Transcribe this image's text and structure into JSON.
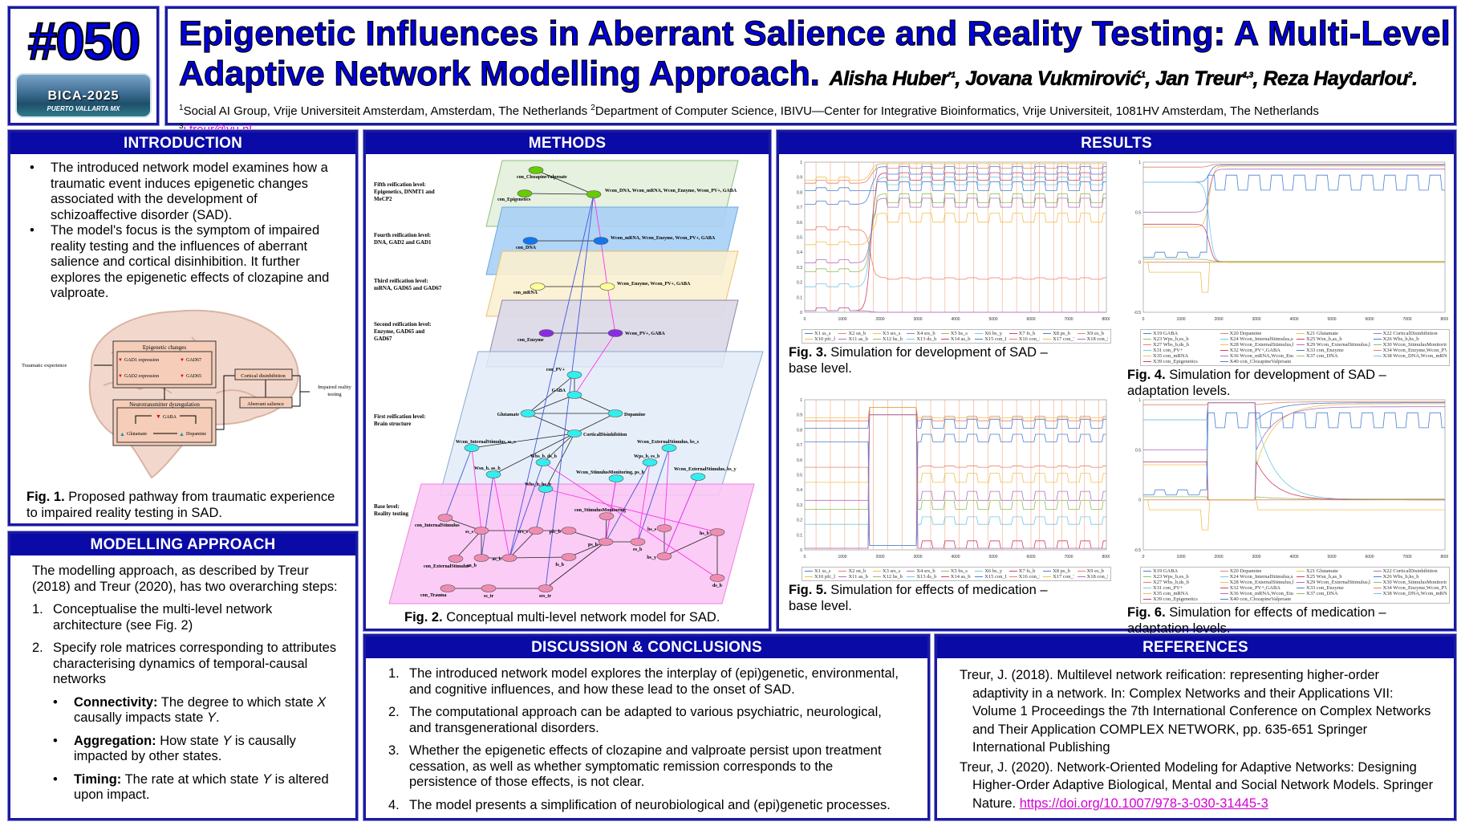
{
  "logo": {
    "number": "#050",
    "conference": "BICA",
    "year": "-2025",
    "location": "PUERTO VALLARTA MX"
  },
  "header": {
    "title_line1": "Epigenetic Influences in Aberrant Salience and Reality Testing: A Multi-Level",
    "title_line2": "Adaptive Network Modelling Approach.",
    "authors": [
      {
        "name": "Alisha Huber",
        "sup": "*1"
      },
      {
        "name": "Jovana Vukmirović",
        "sup": "1"
      },
      {
        "name": "Jan Treur",
        "sup": "1,3"
      },
      {
        "name": "Reza Haydarlou",
        "sup": "2"
      }
    ],
    "affiliation1_sup": "1",
    "affiliation1": "Social AI Group, Vrije Universiteit Amsterdam, Amsterdam, The Netherlands ",
    "affiliation2_sup": "2",
    "affiliation2": "Department of Computer Science, IBIVU—Center for Integrative Bioinformatics, Vrije Universiteit, 1081HV Amsterdam, The Netherlands",
    "email_sup": "3",
    "email": "j.treur@vu.nl"
  },
  "introduction": {
    "heading": "INTRODUCTION",
    "bullets": [
      "The introduced network model examines how a traumatic event induces epigenetic changes associated with the development of schizoaffective disorder (SAD).",
      "The model's focus is the symptom of impaired reality testing and the influences of aberrant salience and cortical disinhibition. It further explores the epigenetic effects of clozapine and valproate."
    ],
    "figure": {
      "traumatic": "Traumatic experience",
      "epi_title": "Epigenetic changes",
      "gad1": "GAD1 expression",
      "gad67": "GAD67",
      "gad2": "GAD2 expression",
      "gad65": "GAD65",
      "neuro_title": "Neurotransmitter dysregulation",
      "gaba": "GABA",
      "glutamate": "Glutamate",
      "dopamine": "Dopamine",
      "cortical": "Cortical disinhibition",
      "aberrant": "Aberrant salience",
      "impaired1": "Impaired reality",
      "impaired2": "testing"
    },
    "caption_label": "Fig. 1.",
    "caption": " Proposed pathway from traumatic experience to impaired reality testing in SAD."
  },
  "modelling": {
    "heading": "MODELLING APPROACH",
    "intro": "The modelling approach, as described by Treur (2018) and Treur (2020), has two overarching steps:",
    "steps": [
      {
        "n": "1.",
        "text": "Conceptualise the multi-level network architecture (see Fig. 2)"
      },
      {
        "n": "2.",
        "text": "Specify role matrices corresponding to attributes characterising dynamics of temporal-causal networks"
      }
    ],
    "attributes": [
      {
        "term": "Connectivity:",
        "pre": " The degree to which state ",
        "v1": "X",
        "mid": " causally impacts state ",
        "v2": "Y",
        "post": "."
      },
      {
        "term": "Aggregation:",
        "pre": " How state ",
        "v1": "Y",
        "mid": " is causally impacted by other states.",
        "v2": "",
        "post": ""
      },
      {
        "term": "Timing:",
        "pre": " The rate at which state ",
        "v1": "Y",
        "mid": " is altered upon impact.",
        "v2": "",
        "post": ""
      }
    ]
  },
  "methods": {
    "heading": "METHODS",
    "levels": [
      {
        "l1": "Fifth reification level:",
        "l2": "Epigenetics, DNMT1 and",
        "l3": "MeCP2"
      },
      {
        "l1": "Fourth reification level:",
        "l2": "DNA, GAD2 and GAD1",
        "l3": ""
      },
      {
        "l1": "Third reification level:",
        "l2": "mRNA, GAD65 and GAD67",
        "l3": ""
      },
      {
        "l1": "Second reification level:",
        "l2": "Enzyme, GAD65 and",
        "l3": "GAD67"
      },
      {
        "l1": "First reification level:",
        "l2": "Brain structure",
        "l3": ""
      },
      {
        "l1": "Base level:",
        "l2": "Reality testing",
        "l3": ""
      }
    ],
    "nodes": {
      "conCV": "con_ClozapineValproate",
      "conEpi": "con_Epigenetics",
      "w5": "Wcon_DNA, Wcon_mRNA, Wcon_Enzyme, Wcon_PV+, GABA",
      "conDNA": "con_DNA",
      "w4": "Wcon_mRNA, Wcon_Enzyme, Wcon_PV+, GABA",
      "conmRNA": "con_mRNA",
      "w3": "Wcon_Enzyme, Wcon_PV+, GABA",
      "conEnz": "con_Enzyme",
      "w2": "Wcon_PV+, GABA",
      "conPV": "con_PV+",
      "GABA": "GABA",
      "Glu": "Glutamate",
      "Dop": "Dopamine",
      "CD": "CorticalDisinhibition",
      "wIS": "Wcon_InternalStimulus, ss_s",
      "wES1": "Wcon_ExternalStimulus, bs_s",
      "wbsds": "Wbs_b, ds_b",
      "wpses": "Wps_b, es_b",
      "wsnas": "Wsn_b, as_b",
      "wSM": "Wcon_StimulusMonitoring, ps_b",
      "wES2": "Wcon_ExternalStimulus, bs_y",
      "wbshs": "Wbs_b, hs_b",
      "conIS": "con_InternalStimulus",
      "ss": "ss_s",
      "conES": "con_ExternalStimulus",
      "sn": "sn_b",
      "as": "as_b",
      "srs": "srs_s",
      "pfc": "pfc_b",
      "fs": "fs_b",
      "conSM": "con_StimulusMonitoring",
      "ps": "ps_b",
      "es": "es_b",
      "bss": "bs_s",
      "bsy": "bs_y",
      "hs": "hs_b",
      "ds": "ds_b",
      "conTr": "con_Trauma",
      "sstr": "ss_tr",
      "srstr": "srs_tr"
    },
    "caption_label": "Fig. 2.",
    "caption": " Conceptual multi-level network model for SAD."
  },
  "results": {
    "heading": "RESULTS",
    "figures": [
      {
        "label": "Fig. 3.",
        "caption": " Simulation for development of SAD – base level."
      },
      {
        "label": "Fig. 4.",
        "caption": " Simulation for development of SAD – adaptation levels."
      },
      {
        "label": "Fig. 5.",
        "caption": " Simulation for effects of medication – base level."
      },
      {
        "label": "Fig. 6.",
        "caption": " Simulation for effects of medication – adaptation levels."
      }
    ]
  },
  "chart_data": [
    {
      "type": "line",
      "title": "Simulation for development of SAD – base level",
      "xlim": [
        0,
        8000
      ],
      "ylim": [
        0,
        1
      ],
      "xticks": [
        "0",
        "1000",
        "2000",
        "3000",
        "4000",
        "5000",
        "6000",
        "7000",
        "8000"
      ],
      "yticks": [
        "0",
        "0.1",
        "0.2",
        "0.3",
        "0.4",
        "0.5",
        "0.6",
        "0.7",
        "0.8",
        "0.9",
        "1"
      ],
      "legend_set": "base"
    },
    {
      "type": "line",
      "title": "Simulation for development of SAD – adaptation levels",
      "xlim": [
        0,
        8000
      ],
      "ylim": [
        -0.5,
        1
      ],
      "xticks": [
        "0",
        "1000",
        "2000",
        "3000",
        "4000",
        "5000",
        "6000",
        "7000",
        "8000"
      ],
      "yticks": [
        "-0.5",
        "0",
        "0.5",
        "1"
      ],
      "legend_set": "adapt"
    },
    {
      "type": "line",
      "title": "Simulation for effects of medication – base level",
      "xlim": [
        0,
        8000
      ],
      "ylim": [
        0,
        1
      ],
      "xticks": [
        "0",
        "1000",
        "2000",
        "3000",
        "4000",
        "5000",
        "6000",
        "7000",
        "8000"
      ],
      "yticks": [
        "0",
        "0.1",
        "0.2",
        "0.3",
        "0.4",
        "0.5",
        "0.6",
        "0.7",
        "0.8",
        "0.9",
        "1"
      ],
      "legend_set": "base"
    },
    {
      "type": "line",
      "title": "Simulation for effects of medication – adaptation levels",
      "xlim": [
        0,
        8000
      ],
      "ylim": [
        -0.5,
        1
      ],
      "xticks": [
        "0",
        "1000",
        "2000",
        "3000",
        "4000",
        "5000",
        "6000",
        "7000",
        "8000"
      ],
      "yticks": [
        "-0.5",
        "0",
        "0.5",
        "1"
      ],
      "legend_set": "adapt"
    }
  ],
  "legends": {
    "base": [
      "X1 ss_s",
      "X2 sn_b",
      "X3 srs_s",
      "X4 srs_b",
      "X5 bs_s",
      "X6 bs_y",
      "X7 fs_b",
      "X8 ps_b",
      "X9 es_b",
      "X10 pfc_b",
      "X11 as_b",
      "X12 hs_b",
      "X13 ds_b",
      "X14 as_b",
      "X15 con_ExternalStimulus",
      "X16 con_InternalStimulus",
      "X17 con_Trauma",
      "X18 con_StimulusMonitoring"
    ],
    "adapt": [
      "X19 GABA",
      "X20 Dopamine",
      "X21 Glutamate",
      "X22 CorticalDisinhibition",
      "X23 Wps_b,es_b",
      "X24 Wcon_InternalStimulus,ss_s",
      "X25 Wsn_b,as_b",
      "X26 Wbs_b,hs_b",
      "X27 Wbs_b,ds_b",
      "X28 Wcon_ExternalStimulus,bs_s",
      "X29 Wcon_ExternalStimulus,bs_y",
      "X30 Wcon_StimulusMonitoring,ps_b",
      "X31 con_PV+",
      "X32 Wcon_PV+,GABA",
      "X33 con_Enzyme",
      "X34 Wcon_Enzyme,Wcon_PV+,GABA",
      "X35 con_mRNA",
      "X36 Wcon_mRNA,Wcon_Enzyme,Wcon_PV+,GABA",
      "X37 con_DNA",
      "X38 Wcon_DNA,Wcon_mRNA,Wcon_Enzyme,Wcon_PV+,GABA",
      "X39 con_Epigenetics",
      "X40 con_ClozapineValproate"
    ]
  },
  "palette": [
    "#4a7fd4",
    "#e8806a",
    "#f0c050",
    "#b070c0",
    "#8cc060",
    "#70c8e8",
    "#d04060"
  ],
  "discussion": {
    "heading": "DISCUSSION & CONCLUSIONS",
    "items": [
      {
        "n": "1.",
        "text": "The introduced network model explores the interplay of (epi)genetic, environmental, and cognitive influences, and how these lead to the onset of SAD."
      },
      {
        "n": "2.",
        "text": "The computational approach can be adapted to various psychiatric, neurological, and transgenerational disorders."
      },
      {
        "n": "3.",
        "text": "Whether the epigenetic effects of clozapine and valproate persist upon treatment cessation, as well as whether symptomatic remission corresponds to the persistence of those effects, is not clear."
      },
      {
        "n": "4.",
        "text": "The model presents a simplification of neurobiological and (epi)genetic processes."
      }
    ]
  },
  "references": {
    "heading": "REFERENCES",
    "items": [
      {
        "text": "Treur, J. (2018). Multilevel network reification: representing higher-order adaptivity in a network. In: Complex Networks and their Applications VII: Volume 1 Proceedings the 7th International Conference on Complex Networks and Their Application COMPLEX NETWORK, pp. 635-651 Springer International Publishing",
        "link": ""
      },
      {
        "text": "Treur, J. (2020). Network-Oriented Modeling for Adaptive Networks: Designing Higher-Order Adaptive Biological, Mental and Social Network Models. Springer Nature. ",
        "link": "https://doi.org/10.1007/978-3-030-31445-3"
      }
    ]
  }
}
